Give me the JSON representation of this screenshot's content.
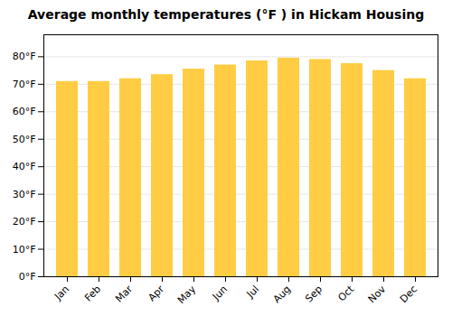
{
  "chart_data": {
    "type": "bar",
    "title": "Average monthly temperatures (°F ) in Hickam Housing",
    "categories": [
      "Jan",
      "Feb",
      "Mar",
      "Apr",
      "May",
      "Jun",
      "Jul",
      "Aug",
      "Sep",
      "Oct",
      "Nov",
      "Dec"
    ],
    "values": [
      71,
      71,
      72,
      73.5,
      75.5,
      77,
      78.5,
      79.5,
      79,
      77.5,
      75,
      72
    ],
    "color": "#FFCC44",
    "ylim": [
      0,
      88
    ],
    "yticks": [
      {
        "value": 0,
        "label": "0°F"
      },
      {
        "value": 10,
        "label": "10°F"
      },
      {
        "value": 20,
        "label": "20°F"
      },
      {
        "value": 30,
        "label": "30°F"
      },
      {
        "value": 40,
        "label": "40°F"
      },
      {
        "value": 50,
        "label": "50°F"
      },
      {
        "value": 60,
        "label": "60°F"
      },
      {
        "value": 70,
        "label": "70°F"
      },
      {
        "value": 80,
        "label": "80°F"
      }
    ],
    "grid": true
  }
}
